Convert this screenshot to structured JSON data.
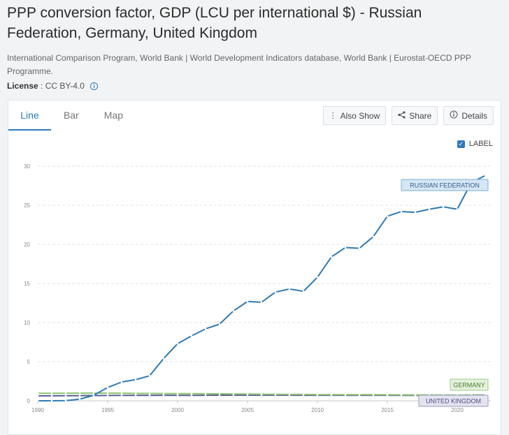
{
  "header": {
    "title": "PPP conversion factor, GDP (LCU per international $) - Russian Federation, Germany, United Kingdom",
    "source": "International Comparison Program, World Bank | World Development Indicators database, World Bank | Eurostat-OECD PPP Programme.",
    "license_label": "License",
    "license_value": ": CC BY-4.0"
  },
  "tabs": [
    "Line",
    "Bar",
    "Map"
  ],
  "toolbar": {
    "also_show": "Also Show",
    "share": "Share",
    "details": "Details"
  },
  "label_toggle": "LABEL",
  "colors": {
    "accent": "#2a7bbf",
    "russia": "#2e7bb6",
    "germany": "#8cc66d",
    "uk": "#5c5c99"
  },
  "chart_data": {
    "type": "line",
    "title": "",
    "xlabel": "",
    "ylabel": "",
    "xlim": [
      1990,
      2022
    ],
    "ylim": [
      0,
      30
    ],
    "x_ticks": [
      "1990",
      "1995",
      "2000",
      "2005",
      "2010",
      "2015",
      "2020"
    ],
    "y_ticks": [
      "0",
      "5",
      "10",
      "15",
      "20",
      "25",
      "30"
    ],
    "grid": true,
    "x": [
      1990,
      1991,
      1992,
      1993,
      1994,
      1995,
      1996,
      1997,
      1998,
      1999,
      2000,
      2001,
      2002,
      2003,
      2004,
      2005,
      2006,
      2007,
      2008,
      2009,
      2010,
      2011,
      2012,
      2013,
      2014,
      2015,
      2016,
      2017,
      2018,
      2019,
      2020,
      2021,
      2022
    ],
    "series": [
      {
        "name": "RUSSIAN FEDERATION",
        "color": "#2e7bb6",
        "values": [
          0.0006,
          0.0015,
          0.02,
          0.2,
          0.7,
          1.7,
          2.4,
          2.7,
          3.2,
          5.4,
          7.3,
          8.3,
          9.2,
          9.8,
          11.5,
          12.7,
          12.6,
          13.9,
          14.3,
          14.0,
          15.8,
          18.4,
          19.6,
          19.5,
          21.0,
          23.6,
          24.2,
          24.1,
          24.5,
          24.8,
          24.5,
          27.9,
          28.8
        ]
      },
      {
        "name": "GERMANY",
        "color": "#8cc66d",
        "values": [
          0.96,
          0.96,
          0.97,
          0.98,
          0.98,
          0.98,
          0.97,
          0.95,
          0.94,
          0.93,
          0.91,
          0.91,
          0.9,
          0.89,
          0.87,
          0.86,
          0.84,
          0.83,
          0.82,
          0.81,
          0.79,
          0.78,
          0.78,
          0.78,
          0.78,
          0.77,
          0.76,
          0.75,
          0.75,
          0.74,
          0.73,
          0.75,
          0.76
        ]
      },
      {
        "name": "UNITED KINGDOM",
        "color": "#5c5c99",
        "values": [
          0.63,
          0.64,
          0.65,
          0.66,
          0.67,
          0.68,
          0.69,
          0.69,
          0.69,
          0.7,
          0.69,
          0.69,
          0.7,
          0.71,
          0.71,
          0.71,
          0.71,
          0.71,
          0.71,
          0.7,
          0.7,
          0.7,
          0.7,
          0.7,
          0.7,
          0.7,
          0.69,
          0.69,
          0.69,
          0.69,
          0.68,
          0.68,
          0.68
        ]
      }
    ]
  }
}
